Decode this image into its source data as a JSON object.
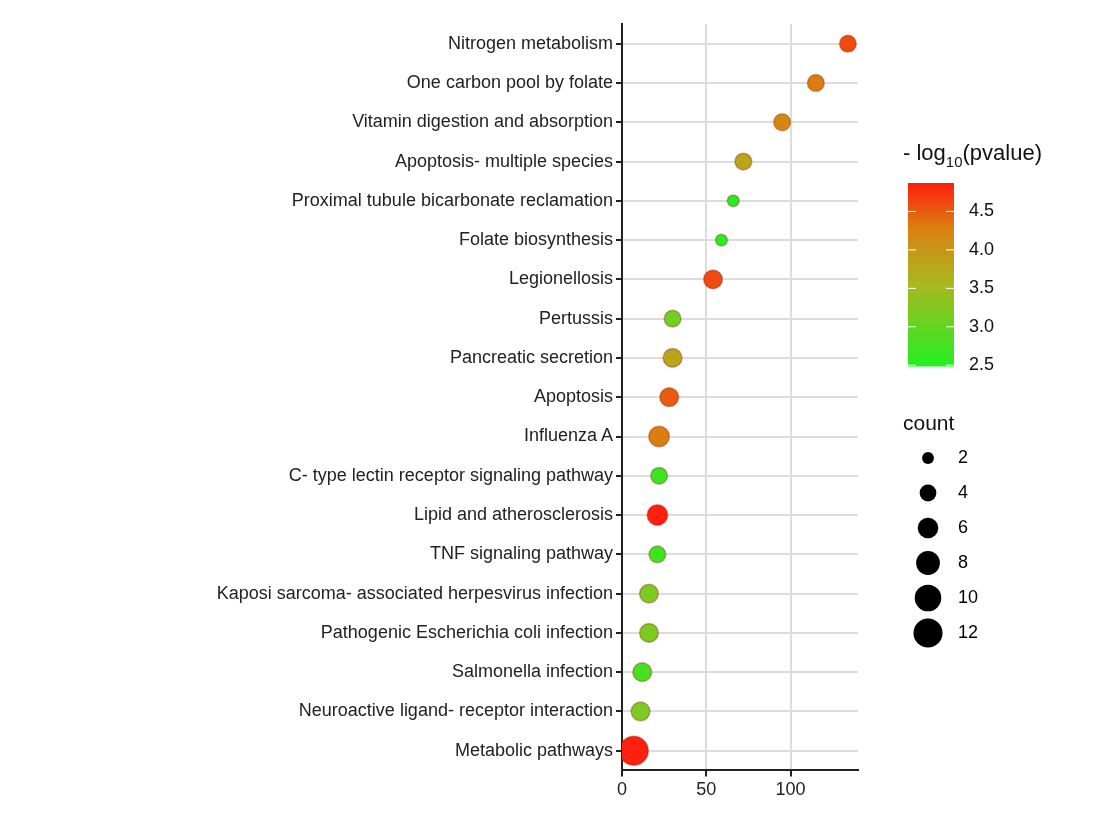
{
  "chart_data": {
    "type": "bubble",
    "orientation": "horizontal",
    "categories": [
      "Nitrogen metabolism",
      "One carbon pool by folate",
      "Vitamin digestion and absorption",
      "Apoptosis- multiple species",
      "Proximal tubule bicarbonate reclamation",
      "Folate biosynthesis",
      "Legionellosis",
      "Pertussis",
      "Pancreatic secretion",
      "Apoptosis",
      "Influenza A",
      "C- type lectin receptor signaling pathway",
      "Lipid and atherosclerosis",
      "TNF signaling pathway",
      "Kaposi sarcoma- associated herpesvirus infection",
      "Pathogenic Escherichia coli infection",
      "Salmonella infection",
      "Neuroactive ligand- receptor interaction",
      "Metabolic pathways"
    ],
    "values": [
      134,
      115,
      95,
      72,
      66,
      59,
      54,
      30,
      30,
      28,
      22,
      22,
      21,
      21,
      16,
      16,
      12,
      11,
      7
    ],
    "sizes": [
      4,
      4,
      4,
      4,
      2,
      2,
      5,
      4,
      5,
      5,
      6,
      4,
      6,
      4,
      5,
      5,
      5,
      5,
      12
    ],
    "cvalues": [
      4.6,
      4.3,
      4.2,
      3.8,
      2.5,
      2.5,
      4.6,
      3.1,
      3.8,
      4.5,
      4.3,
      2.7,
      4.85,
      2.7,
      3.2,
      3.2,
      2.8,
      3.2,
      4.85
    ],
    "size_legend": [
      2,
      4,
      6,
      8,
      10,
      12
    ],
    "legend_title": "count",
    "clabel": "- log$_{10}$(pvalue)",
    "clim": [
      2.49,
      4.87
    ],
    "cticks": [
      2.5,
      {
        "value": 3,
        "label": "3.0"
      },
      3.5,
      {
        "value": 4,
        "label": "4.0"
      },
      4.5
    ],
    "xlim": [
      0,
      140
    ],
    "xticks": [
      0,
      50,
      100
    ],
    "grid": true
  }
}
